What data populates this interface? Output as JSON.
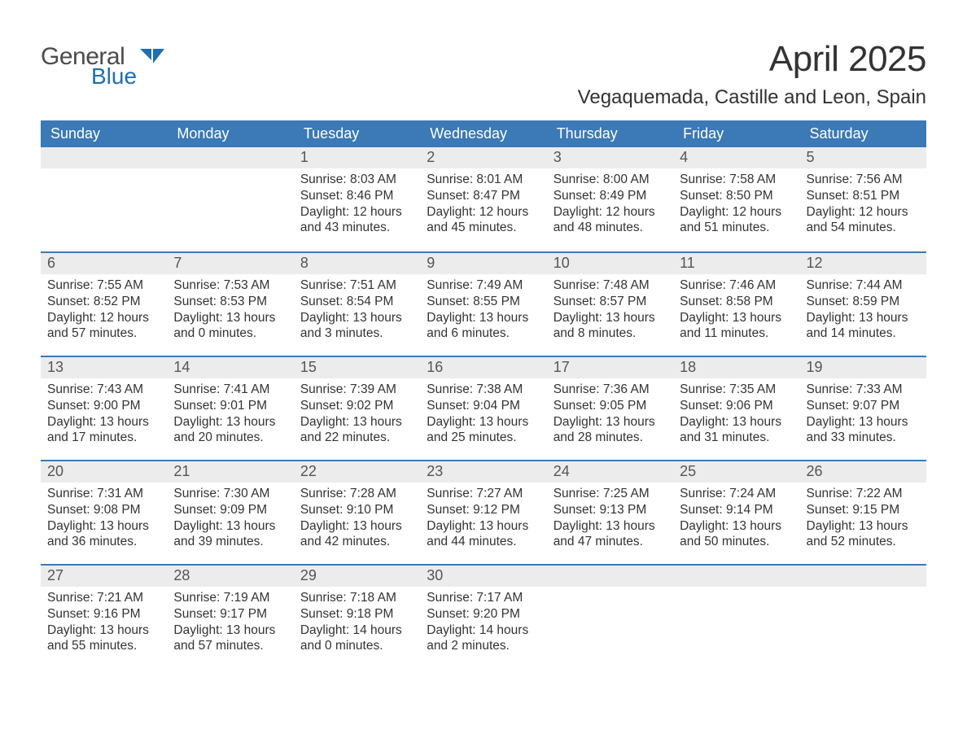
{
  "logo": {
    "word1": "General",
    "word2": "Blue",
    "word1_color": "#4b4b4b",
    "word2_color": "#1f6fb2",
    "icon_color": "#1f6fb2"
  },
  "title": "April 2025",
  "location": "Vegaquemada, Castille and Leon, Spain",
  "colors": {
    "header_bg": "#3b79b7",
    "header_text": "#ffffff",
    "daynum_bg": "#ececec",
    "daynum_text": "#555555",
    "body_text": "#333333",
    "week_divider": "#3b79b7",
    "page_bg": "#ffffff"
  },
  "fonts": {
    "title_pt": 44,
    "location_pt": 24,
    "dayhead_pt": 18,
    "daynum_pt": 18,
    "body_pt": 15.5
  },
  "day_headers": [
    "Sunday",
    "Monday",
    "Tuesday",
    "Wednesday",
    "Thursday",
    "Friday",
    "Saturday"
  ],
  "weeks": [
    [
      {
        "num": "",
        "sunrise": "",
        "sunset": "",
        "daylight1": "",
        "daylight2": ""
      },
      {
        "num": "",
        "sunrise": "",
        "sunset": "",
        "daylight1": "",
        "daylight2": ""
      },
      {
        "num": "1",
        "sunrise": "Sunrise: 8:03 AM",
        "sunset": "Sunset: 8:46 PM",
        "daylight1": "Daylight: 12 hours",
        "daylight2": "and 43 minutes."
      },
      {
        "num": "2",
        "sunrise": "Sunrise: 8:01 AM",
        "sunset": "Sunset: 8:47 PM",
        "daylight1": "Daylight: 12 hours",
        "daylight2": "and 45 minutes."
      },
      {
        "num": "3",
        "sunrise": "Sunrise: 8:00 AM",
        "sunset": "Sunset: 8:49 PM",
        "daylight1": "Daylight: 12 hours",
        "daylight2": "and 48 minutes."
      },
      {
        "num": "4",
        "sunrise": "Sunrise: 7:58 AM",
        "sunset": "Sunset: 8:50 PM",
        "daylight1": "Daylight: 12 hours",
        "daylight2": "and 51 minutes."
      },
      {
        "num": "5",
        "sunrise": "Sunrise: 7:56 AM",
        "sunset": "Sunset: 8:51 PM",
        "daylight1": "Daylight: 12 hours",
        "daylight2": "and 54 minutes."
      }
    ],
    [
      {
        "num": "6",
        "sunrise": "Sunrise: 7:55 AM",
        "sunset": "Sunset: 8:52 PM",
        "daylight1": "Daylight: 12 hours",
        "daylight2": "and 57 minutes."
      },
      {
        "num": "7",
        "sunrise": "Sunrise: 7:53 AM",
        "sunset": "Sunset: 8:53 PM",
        "daylight1": "Daylight: 13 hours",
        "daylight2": "and 0 minutes."
      },
      {
        "num": "8",
        "sunrise": "Sunrise: 7:51 AM",
        "sunset": "Sunset: 8:54 PM",
        "daylight1": "Daylight: 13 hours",
        "daylight2": "and 3 minutes."
      },
      {
        "num": "9",
        "sunrise": "Sunrise: 7:49 AM",
        "sunset": "Sunset: 8:55 PM",
        "daylight1": "Daylight: 13 hours",
        "daylight2": "and 6 minutes."
      },
      {
        "num": "10",
        "sunrise": "Sunrise: 7:48 AM",
        "sunset": "Sunset: 8:57 PM",
        "daylight1": "Daylight: 13 hours",
        "daylight2": "and 8 minutes."
      },
      {
        "num": "11",
        "sunrise": "Sunrise: 7:46 AM",
        "sunset": "Sunset: 8:58 PM",
        "daylight1": "Daylight: 13 hours",
        "daylight2": "and 11 minutes."
      },
      {
        "num": "12",
        "sunrise": "Sunrise: 7:44 AM",
        "sunset": "Sunset: 8:59 PM",
        "daylight1": "Daylight: 13 hours",
        "daylight2": "and 14 minutes."
      }
    ],
    [
      {
        "num": "13",
        "sunrise": "Sunrise: 7:43 AM",
        "sunset": "Sunset: 9:00 PM",
        "daylight1": "Daylight: 13 hours",
        "daylight2": "and 17 minutes."
      },
      {
        "num": "14",
        "sunrise": "Sunrise: 7:41 AM",
        "sunset": "Sunset: 9:01 PM",
        "daylight1": "Daylight: 13 hours",
        "daylight2": "and 20 minutes."
      },
      {
        "num": "15",
        "sunrise": "Sunrise: 7:39 AM",
        "sunset": "Sunset: 9:02 PM",
        "daylight1": "Daylight: 13 hours",
        "daylight2": "and 22 minutes."
      },
      {
        "num": "16",
        "sunrise": "Sunrise: 7:38 AM",
        "sunset": "Sunset: 9:04 PM",
        "daylight1": "Daylight: 13 hours",
        "daylight2": "and 25 minutes."
      },
      {
        "num": "17",
        "sunrise": "Sunrise: 7:36 AM",
        "sunset": "Sunset: 9:05 PM",
        "daylight1": "Daylight: 13 hours",
        "daylight2": "and 28 minutes."
      },
      {
        "num": "18",
        "sunrise": "Sunrise: 7:35 AM",
        "sunset": "Sunset: 9:06 PM",
        "daylight1": "Daylight: 13 hours",
        "daylight2": "and 31 minutes."
      },
      {
        "num": "19",
        "sunrise": "Sunrise: 7:33 AM",
        "sunset": "Sunset: 9:07 PM",
        "daylight1": "Daylight: 13 hours",
        "daylight2": "and 33 minutes."
      }
    ],
    [
      {
        "num": "20",
        "sunrise": "Sunrise: 7:31 AM",
        "sunset": "Sunset: 9:08 PM",
        "daylight1": "Daylight: 13 hours",
        "daylight2": "and 36 minutes."
      },
      {
        "num": "21",
        "sunrise": "Sunrise: 7:30 AM",
        "sunset": "Sunset: 9:09 PM",
        "daylight1": "Daylight: 13 hours",
        "daylight2": "and 39 minutes."
      },
      {
        "num": "22",
        "sunrise": "Sunrise: 7:28 AM",
        "sunset": "Sunset: 9:10 PM",
        "daylight1": "Daylight: 13 hours",
        "daylight2": "and 42 minutes."
      },
      {
        "num": "23",
        "sunrise": "Sunrise: 7:27 AM",
        "sunset": "Sunset: 9:12 PM",
        "daylight1": "Daylight: 13 hours",
        "daylight2": "and 44 minutes."
      },
      {
        "num": "24",
        "sunrise": "Sunrise: 7:25 AM",
        "sunset": "Sunset: 9:13 PM",
        "daylight1": "Daylight: 13 hours",
        "daylight2": "and 47 minutes."
      },
      {
        "num": "25",
        "sunrise": "Sunrise: 7:24 AM",
        "sunset": "Sunset: 9:14 PM",
        "daylight1": "Daylight: 13 hours",
        "daylight2": "and 50 minutes."
      },
      {
        "num": "26",
        "sunrise": "Sunrise: 7:22 AM",
        "sunset": "Sunset: 9:15 PM",
        "daylight1": "Daylight: 13 hours",
        "daylight2": "and 52 minutes."
      }
    ],
    [
      {
        "num": "27",
        "sunrise": "Sunrise: 7:21 AM",
        "sunset": "Sunset: 9:16 PM",
        "daylight1": "Daylight: 13 hours",
        "daylight2": "and 55 minutes."
      },
      {
        "num": "28",
        "sunrise": "Sunrise: 7:19 AM",
        "sunset": "Sunset: 9:17 PM",
        "daylight1": "Daylight: 13 hours",
        "daylight2": "and 57 minutes."
      },
      {
        "num": "29",
        "sunrise": "Sunrise: 7:18 AM",
        "sunset": "Sunset: 9:18 PM",
        "daylight1": "Daylight: 14 hours",
        "daylight2": "and 0 minutes."
      },
      {
        "num": "30",
        "sunrise": "Sunrise: 7:17 AM",
        "sunset": "Sunset: 9:20 PM",
        "daylight1": "Daylight: 14 hours",
        "daylight2": "and 2 minutes."
      },
      {
        "num": "",
        "sunrise": "",
        "sunset": "",
        "daylight1": "",
        "daylight2": ""
      },
      {
        "num": "",
        "sunrise": "",
        "sunset": "",
        "daylight1": "",
        "daylight2": ""
      },
      {
        "num": "",
        "sunrise": "",
        "sunset": "",
        "daylight1": "",
        "daylight2": ""
      }
    ]
  ]
}
